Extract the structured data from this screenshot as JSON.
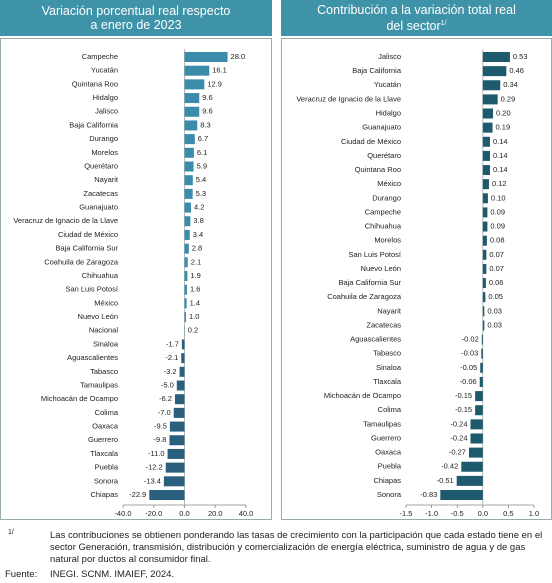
{
  "chart_data": [
    {
      "type": "bar",
      "orientation": "horizontal",
      "title": "Variación porcentual real respecto a enero de 2023",
      "categories": [
        "Campeche",
        "Yucatán",
        "Quintana Roo",
        "Hidalgo",
        "Jalisco",
        "Baja California",
        "Durango",
        "Morelos",
        "Querétaro",
        "Nayarit",
        "Zacatecas",
        "Guanajuato",
        "Veracruz de Ignacio de la Llave",
        "Ciudad de México",
        "Baja California Sur",
        "Coahuila de Zaragoza",
        "Chihuahua",
        "San Luis Potosí",
        "México",
        "Nuevo León",
        "Nacional",
        "Sinaloa",
        "Aguascalientes",
        "Tabasco",
        "Tamaulipas",
        "Michoacán de Ocampo",
        "Colima",
        "Oaxaca",
        "Guerrero",
        "Tlaxcala",
        "Puebla",
        "Sonora",
        "Chiapas"
      ],
      "values": [
        28.0,
        16.1,
        12.9,
        9.6,
        9.6,
        8.3,
        6.7,
        6.1,
        5.9,
        5.4,
        5.3,
        4.2,
        3.8,
        3.4,
        2.8,
        2.1,
        1.9,
        1.6,
        1.4,
        1.0,
        0.2,
        -1.7,
        -2.1,
        -3.2,
        -5.0,
        -6.2,
        -7.0,
        -9.5,
        -9.8,
        -11.0,
        -12.2,
        -13.4,
        -22.9
      ],
      "value_labels": [
        "28.0",
        "16.1",
        "12.9",
        "9.6",
        "9.6",
        "8.3",
        "6.7",
        "6.1",
        "5.9",
        "5.4",
        "5.3",
        "4.2",
        "3.8",
        "3.4",
        "2.8",
        "2.1",
        "1.9",
        "1.6",
        "1.4",
        "1.0",
        "0.2",
        "-1.7",
        "-2.1",
        "-3.2",
        "-5.0",
        "-6.2",
        "-7.0",
        "-9.5",
        "-9.8",
        "-11.0",
        "-12.2",
        "-13.4",
        "-22.9"
      ],
      "positive_color": "#3a8caa",
      "negative_color": "#2a5f7e",
      "xlim": [
        -40,
        40
      ],
      "xticks": [
        {
          "value": -40,
          "label": "-40.0"
        },
        {
          "value": -20,
          "label": "-20.0"
        },
        {
          "value": 0,
          "label": "0.0"
        },
        {
          "value": 20,
          "label": "20.0"
        },
        {
          "value": 40,
          "label": "40.0"
        }
      ]
    },
    {
      "type": "bar",
      "orientation": "horizontal",
      "title": "Contribución a la variación total real del sector",
      "title_note": "1/",
      "categories": [
        "Jalisco",
        "Baja California",
        "Yucatán",
        "Veracruz de Ignacio de la Llave",
        "Hidalgo",
        "Guanajuato",
        "Ciudad de México",
        "Querétaro",
        "Quintana Roo",
        "México",
        "Durango",
        "Campeche",
        "Chihuahua",
        "Morelos",
        "San Luis Potosí",
        "Nuevo León",
        "Baja California Sur",
        "Coahuila de Zaragoza",
        "Nayarit",
        "Zacatecas",
        "Aguascalientes",
        "Tabasco",
        "Sinaloa",
        "Tlaxcala",
        "Michoacán de Ocampo",
        "Colima",
        "Tamaulipas",
        "Guerrero",
        "Oaxaca",
        "Puebla",
        "Chiapas",
        "Sonora"
      ],
      "values": [
        0.53,
        0.46,
        0.34,
        0.29,
        0.2,
        0.19,
        0.14,
        0.14,
        0.14,
        0.12,
        0.1,
        0.09,
        0.09,
        0.08,
        0.07,
        0.07,
        0.06,
        0.05,
        0.03,
        0.03,
        -0.02,
        -0.03,
        -0.05,
        -0.06,
        -0.15,
        -0.15,
        -0.24,
        -0.24,
        -0.27,
        -0.42,
        -0.51,
        -0.83
      ],
      "value_labels": [
        "0.53",
        "0.46",
        "0.34",
        "0.29",
        "0.20",
        "0.19",
        "0.14",
        "0.14",
        "0.14",
        "0.12",
        "0.10",
        "0.09",
        "0.09",
        "0.08",
        "0.07",
        "0.07",
        "0.06",
        "0.05",
        "0.03",
        "0.03",
        "-0.02",
        "-0.03",
        "-0.05",
        "-0.06",
        "-0.15",
        "-0.15",
        "-0.24",
        "-0.24",
        "-0.27",
        "-0.42",
        "-0.51",
        "-0.83"
      ],
      "positive_color": "#1d5a6e",
      "negative_color": "#1d5a6e",
      "xlim": [
        -1.5,
        1.0
      ],
      "xticks": [
        -1.5,
        {
          "value": -1.0,
          "label": "-1.0"
        },
        -0.5,
        {
          "value": 0,
          "label": "0.0"
        },
        0.5,
        {
          "value": 1.0,
          "label": "1.0"
        }
      ]
    }
  ],
  "footnote": {
    "mark": "1/",
    "text": "Las contribuciones se obtienen ponderando las tasas de crecimiento con la participación que cada estado tiene en el sector Generación, transmisión, distribución y comercialización de energía eléctrica, suministro de agua y de gas natural por ductos al consumidor final."
  },
  "source": {
    "label": "Fuente:",
    "text": "INEGI. SCNM. IMAIEF, 2024."
  }
}
